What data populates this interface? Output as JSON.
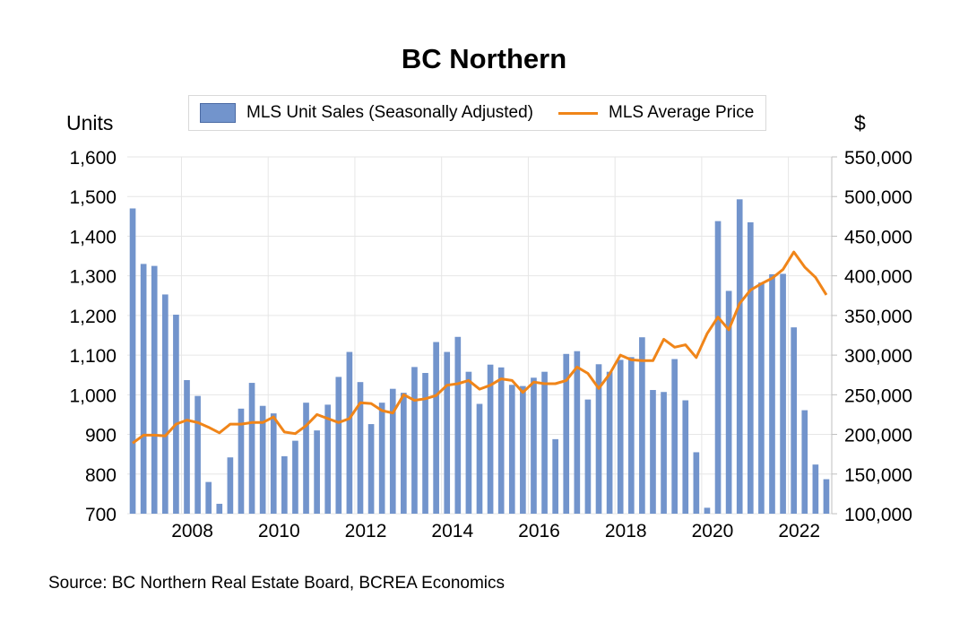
{
  "chart_data": {
    "type": "bar+line",
    "title": "BC Northern",
    "ylabel_left": "Units",
    "ylabel_right": "$",
    "ylim_left": [
      700,
      1600
    ],
    "yticks_left": [
      "700",
      "800",
      "900",
      "1,000",
      "1,100",
      "1,200",
      "1,300",
      "1,400",
      "1,500",
      "1,600"
    ],
    "ylim_right": [
      100000,
      550000
    ],
    "yticks_right": [
      "100,000",
      "150,000",
      "200,000",
      "250,000",
      "300,000",
      "350,000",
      "400,000",
      "450,000",
      "500,000",
      "550,000"
    ],
    "x_start": 2006.75,
    "x_end": 2022.75,
    "x_step": 0.25,
    "xticks": [
      "2008",
      "2010",
      "2012",
      "2014",
      "2016",
      "2018",
      "2020",
      "2022"
    ],
    "grid": true,
    "legend_position": "top",
    "colors": {
      "bars": "#7294cc",
      "line": "#f08519",
      "grid": "#e6e6e6"
    },
    "series": [
      {
        "name": "MLS Unit Sales (Seasonally Adjusted)",
        "type": "bar",
        "axis": "left",
        "values": [
          1470,
          1330,
          1325,
          1253,
          1202,
          1037,
          997,
          780,
          725,
          842,
          965,
          1030,
          972,
          953,
          845,
          884,
          980,
          910,
          975,
          1045,
          1108,
          1032,
          926,
          980,
          1015,
          1005,
          1070,
          1055,
          1133,
          1108,
          1146,
          1058,
          977,
          1076,
          1069,
          1025,
          1022,
          1043,
          1058,
          888,
          1103,
          1110,
          988,
          1077,
          1058,
          1088,
          1095,
          1145,
          1012,
          1007,
          1090,
          986,
          855,
          715,
          1438,
          1262,
          1493,
          1435,
          1283,
          1304,
          1305,
          1170,
          961,
          824,
          787
        ]
      },
      {
        "name": "MLS Average Price",
        "type": "line",
        "axis": "right",
        "values": [
          189000,
          199000,
          199000,
          198000,
          213000,
          218000,
          215000,
          209000,
          202000,
          213000,
          213000,
          215000,
          215000,
          222000,
          203000,
          201000,
          211000,
          225000,
          220000,
          215000,
          220000,
          240000,
          239000,
          230000,
          227000,
          250000,
          243000,
          245000,
          249000,
          262000,
          264000,
          268000,
          257000,
          262000,
          270000,
          268000,
          253000,
          266000,
          264000,
          264000,
          268000,
          285000,
          277000,
          258000,
          276000,
          300000,
          294000,
          293000,
          293000,
          320000,
          310000,
          313000,
          297000,
          327000,
          348000,
          332000,
          365000,
          382000,
          390000,
          397000,
          408000,
          430000,
          411000,
          398000,
          376000
        ]
      }
    ]
  },
  "source": "Source:  BC Northern Real Estate Board, BCREA Economics"
}
